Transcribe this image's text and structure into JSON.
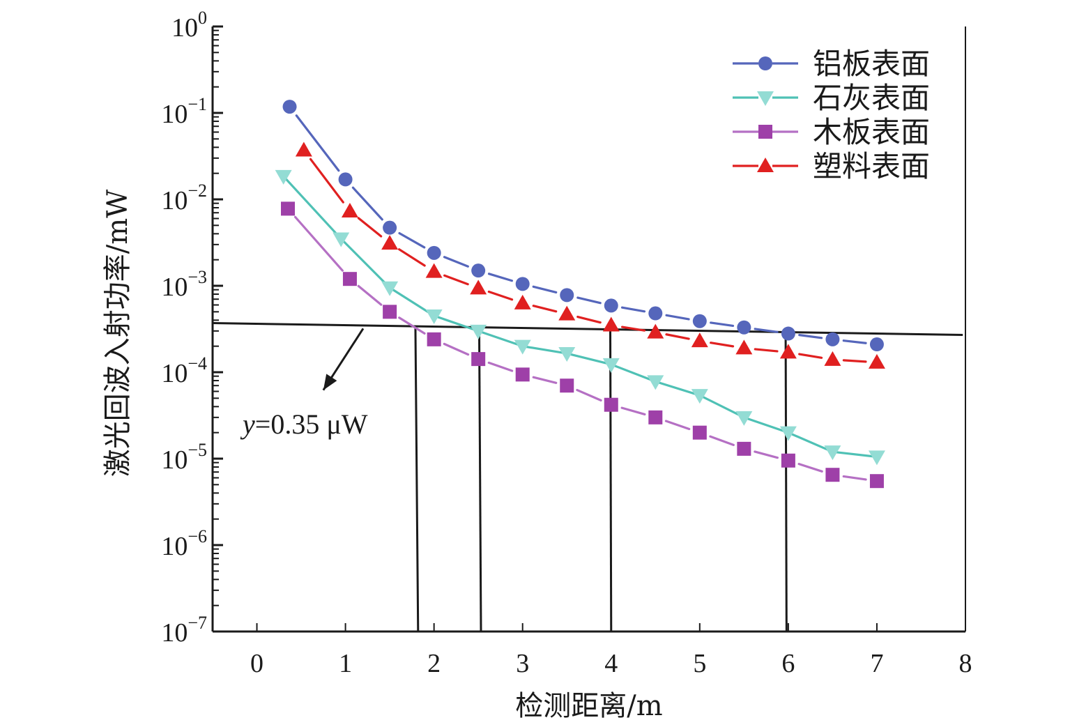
{
  "chart_data": {
    "type": "line",
    "title": "",
    "xlabel": "检测距离/m",
    "ylabel": "激光回波入射功率/mW",
    "xlim": [
      -0.5,
      8
    ],
    "ylim": [
      1e-07,
      1
    ],
    "yscale": "log",
    "grid": false,
    "x_ticks": [
      0,
      1,
      2,
      3,
      4,
      5,
      6,
      7,
      8
    ],
    "x_tick_labels": [
      "0",
      "1",
      "2",
      "3",
      "4",
      "5",
      "6",
      "7",
      "8"
    ],
    "y_ticks": [
      {
        "base": "10",
        "exp": "0",
        "value": 1
      },
      {
        "base": "10",
        "exp": "−1",
        "value": 0.1
      },
      {
        "base": "10",
        "exp": "−2",
        "value": 0.01
      },
      {
        "base": "10",
        "exp": "−3",
        "value": 0.001
      },
      {
        "base": "10",
        "exp": "−4",
        "value": 0.0001
      },
      {
        "base": "10",
        "exp": "−5",
        "value": 1e-05
      },
      {
        "base": "10",
        "exp": "−6",
        "value": 1e-06
      },
      {
        "base": "10",
        "exp": "−7",
        "value": 1e-07
      }
    ],
    "legend_position": "top-right",
    "series": [
      {
        "name": "铝板表面",
        "color": "#5566bb",
        "marker": "circle",
        "dashed": true,
        "x": [
          0.37,
          1.0,
          1.5,
          2.0,
          2.5,
          3.0,
          3.5,
          4.0,
          4.5,
          5.0,
          5.5,
          6.0,
          6.5,
          7.0
        ],
        "values": [
          0.118,
          0.017,
          0.0047,
          0.0024,
          0.0015,
          0.00105,
          0.00078,
          0.00059,
          0.00048,
          0.00039,
          0.00033,
          0.00028,
          0.00024,
          0.00021
        ]
      },
      {
        "name": "石灰表面",
        "color": "#4fc1b5",
        "marker_color": "#93dcd4",
        "marker": "triangle-down",
        "dashed": false,
        "x": [
          0.3,
          0.95,
          1.5,
          2.0,
          2.5,
          3.0,
          3.5,
          4.0,
          4.5,
          5.0,
          5.5,
          6.0,
          6.5,
          7.0
        ],
        "values": [
          0.0185,
          0.0035,
          0.00095,
          0.00045,
          0.0003,
          0.0002,
          0.000165,
          0.000123,
          7.8e-05,
          5.4e-05,
          3e-05,
          2e-05,
          1.2e-05,
          1.05e-05
        ]
      },
      {
        "name": "木板表面",
        "color": "#b570c4",
        "marker_color": "#9e40a8",
        "marker": "square",
        "dashed": true,
        "x": [
          0.35,
          1.05,
          1.5,
          2.0,
          2.5,
          3.0,
          3.5,
          4.0,
          4.5,
          5.0,
          5.5,
          6.0,
          6.5,
          7.0
        ],
        "values": [
          0.0078,
          0.0012,
          0.0005,
          0.00024,
          0.000142,
          9.4e-05,
          7e-05,
          4.2e-05,
          3e-05,
          2e-05,
          1.3e-05,
          9.5e-06,
          6.5e-06,
          5.5e-06
        ]
      },
      {
        "name": "塑料表面",
        "color": "#e02020",
        "marker": "triangle-up",
        "dashed": true,
        "x": [
          0.53,
          1.05,
          1.5,
          2.0,
          2.5,
          3.0,
          3.5,
          4.0,
          4.5,
          5.0,
          5.5,
          6.0,
          6.5,
          7.0
        ],
        "values": [
          0.037,
          0.0073,
          0.0031,
          0.00146,
          0.00094,
          0.00063,
          0.00047,
          0.00035,
          0.00029,
          0.00023,
          0.00019,
          0.00017,
          0.00014,
          0.00013
        ]
      }
    ],
    "threshold_line": {
      "x": [
        -0.5,
        7.97
      ],
      "values": [
        0.00037,
        0.00027
      ],
      "color": "#1a1a1a"
    },
    "drop_lines": [
      {
        "x_top": 1.79,
        "x_bottom": 1.82,
        "y_top": 0.00032
      },
      {
        "x_top": 2.51,
        "x_bottom": 2.53,
        "y_top": 0.00032
      },
      {
        "x_top": 3.99,
        "x_bottom": 4.0,
        "y_top": 0.00031
      },
      {
        "x_top": 5.97,
        "x_bottom": 5.98,
        "y_top": 0.00028
      }
    ],
    "annotation": {
      "var": "y",
      "text": "=0.35 μW",
      "arrow_from": {
        "x": 1.2,
        "y": 0.00032
      },
      "arrow_to": {
        "x": 0.75,
        "y": 6.2e-05
      },
      "label_anchor": {
        "x": -0.15,
        "y": 2.5e-05
      }
    }
  }
}
